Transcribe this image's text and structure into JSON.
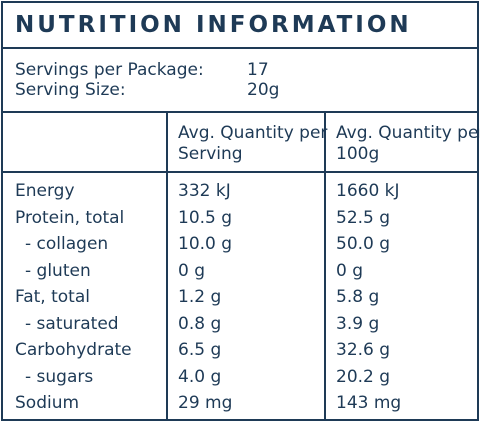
{
  "title": "NUTRITION INFORMATION",
  "servings": [
    {
      "label": "Servings per Package:",
      "value": "17"
    },
    {
      "label": "Serving Size:",
      "value": "20g"
    }
  ],
  "header": {
    "per_serving": "Avg. Quantity per Serving",
    "per_100g": "Avg. Quantity per 100g"
  },
  "rows": [
    {
      "name": "Energy",
      "per_serving": "332 kJ",
      "per_100g": "1660 kJ"
    },
    {
      "name": "Protein, total",
      "per_serving": "10.5 g",
      "per_100g": "52.5 g"
    },
    {
      "name": " - collagen",
      "per_serving": "10.0 g",
      "per_100g": "50.0 g"
    },
    {
      "name": " - gluten",
      "per_serving": "0 g",
      "per_100g": "0 g"
    },
    {
      "name": "Fat, total",
      "per_serving": "1.2 g",
      "per_100g": "5.8 g"
    },
    {
      "name": " - saturated",
      "per_serving": "0.8 g",
      "per_100g": "3.9 g"
    },
    {
      "name": "Carbohydrate",
      "per_serving": "6.5 g",
      "per_100g": "32.6 g"
    },
    {
      "name": " - sugars",
      "per_serving": "4.0 g",
      "per_100g": "20.2 g"
    },
    {
      "name": "Sodium",
      "per_serving": "29 mg",
      "per_100g": "143 mg"
    }
  ]
}
